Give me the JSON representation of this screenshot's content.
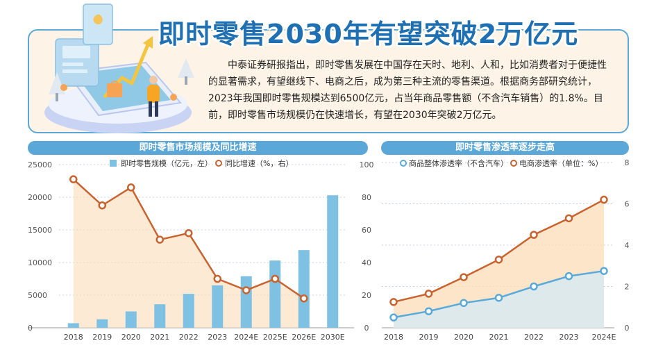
{
  "header": {
    "title": "即时零售2030年有望突破2万亿元",
    "summary": "中泰证券研报指出，即时零售发展在中国存在天时、地利、人和，比如消费者对于便捷性的显著需求，有望继线下、电商之后，成为第三种主流的零售渠道。根据商务部研究统计，2023年我国即时零售规模达到6500亿元，占当年商品零售额（不含汽车销售）的1.8%。目前，即时零售市场规模仍在快速增长，有望在2030年突破2万亿元。"
  },
  "colors": {
    "title_blue": "#1f6fb3",
    "header_blue": "#5aa7d8",
    "bar_blue": "#7ec1e2",
    "orange": "#c8632f",
    "orange_area": "#fbdcb7",
    "blue_line": "#5aaad9",
    "blue_area": "#d4e9f7",
    "box_bg": "#fdf4e7"
  },
  "illustration": {
    "icons": [
      "phone-icon",
      "person-icon",
      "tree-icon",
      "trend-arrow-icon",
      "shopping-bag-icon"
    ]
  },
  "chart_data": [
    {
      "type": "bar",
      "title": "即时零售市场规模及同比增速",
      "categories": [
        "2018",
        "2019",
        "2020",
        "2021",
        "2022",
        "2023",
        "2024E",
        "2025E",
        "2026E",
        "2030E"
      ],
      "series": [
        {
          "name": "即时零售规模（亿元，左）",
          "type": "bar",
          "axis": "left",
          "values": [
            700,
            1300,
            2500,
            3600,
            5200,
            6500,
            7900,
            10300,
            11900,
            20300
          ]
        },
        {
          "name": "同比增速（%，右）",
          "type": "line",
          "axis": "right",
          "values": [
            91,
            75,
            86,
            54,
            58,
            30,
            23,
            30,
            18,
            null
          ]
        }
      ],
      "yleft": {
        "ylim": [
          0,
          25000
        ],
        "ticks": [
          "0",
          "5000",
          "10000",
          "15000",
          "20000",
          "25000"
        ]
      },
      "yright": {
        "ylim": [
          0,
          100
        ],
        "ticks": [
          "0",
          "20",
          "40",
          "60",
          "80",
          "100"
        ]
      },
      "grid": true,
      "legend": "top-center"
    },
    {
      "type": "line",
      "title": "即时零售渗透率逐步走高",
      "categories": [
        "2018",
        "2019",
        "2020",
        "2021",
        "2022",
        "2023",
        "2024E"
      ],
      "series": [
        {
          "name": "商品整体渗透率（不含汽车）",
          "axis": "left",
          "values": [
            0.5,
            0.8,
            1.2,
            1.45,
            2.0,
            2.5,
            2.75
          ]
        },
        {
          "name": "电商渗透率（单位：%）",
          "axis": "right",
          "values": [
            1.25,
            1.65,
            2.45,
            3.3,
            4.5,
            5.3,
            6.2
          ]
        }
      ],
      "yleft": {
        "ylim": [
          0,
          8
        ],
        "ticks": []
      },
      "yright": {
        "ylim": [
          0,
          8
        ],
        "ticks": [
          "0",
          "2",
          "4",
          "6",
          "8"
        ]
      },
      "grid": true,
      "legend": "top-center"
    }
  ]
}
